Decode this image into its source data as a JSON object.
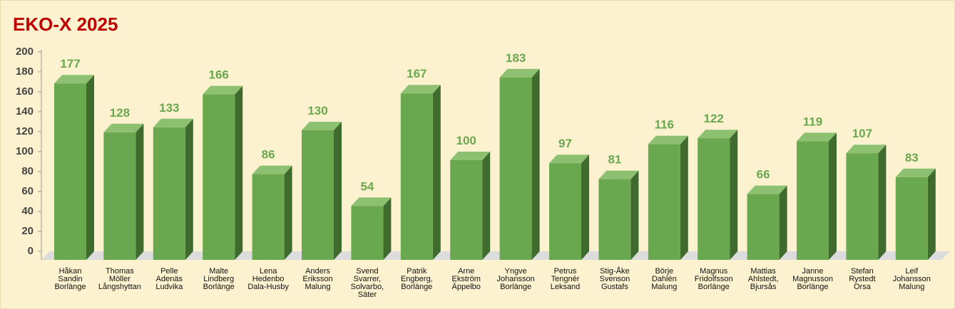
{
  "chart_data": {
    "type": "bar3d",
    "title": "EKO-X 2025",
    "categories": [
      "Håkan\nSandin\nBorlänge",
      "Thomas\nMöller\nLångshyttan",
      "Pelle\nAdenäs\nLudvika",
      "Malte\nLindberg\nBorlänge",
      "Lena\nHedenbo\nDala-Husby",
      "Anders\nEriksson\nMalung",
      "Svend\nSvarrer,\nSolvarbo,\nSäter",
      "Patrik\nEngberg,\nBorlänge",
      "Arne\nEkström\nÄppelbo",
      "Yngve\nJohansson\nBorlänge",
      "Petrus\nTengnér\nLeksand",
      "Stig-Åke\nSvenson\nGustafs",
      "Börje\nDahlén\nMalung",
      "Magnus\nFridolfsson\nBorlänge",
      "Mattias\nAhlstedt,\nBjursås",
      "Janne\nMagnusson\nBorlänge",
      "Stefan\nRystedt\nOrsa",
      "Leif\nJohansson\nMalung"
    ],
    "values": [
      177,
      128,
      133,
      166,
      86,
      130,
      54,
      167,
      100,
      183,
      97,
      81,
      116,
      122,
      66,
      119,
      107,
      83
    ],
    "color": "#6aa84f",
    "ylim": [
      0,
      200
    ],
    "yticks": [
      0,
      20,
      40,
      60,
      80,
      100,
      120,
      140,
      160,
      180,
      200
    ]
  }
}
